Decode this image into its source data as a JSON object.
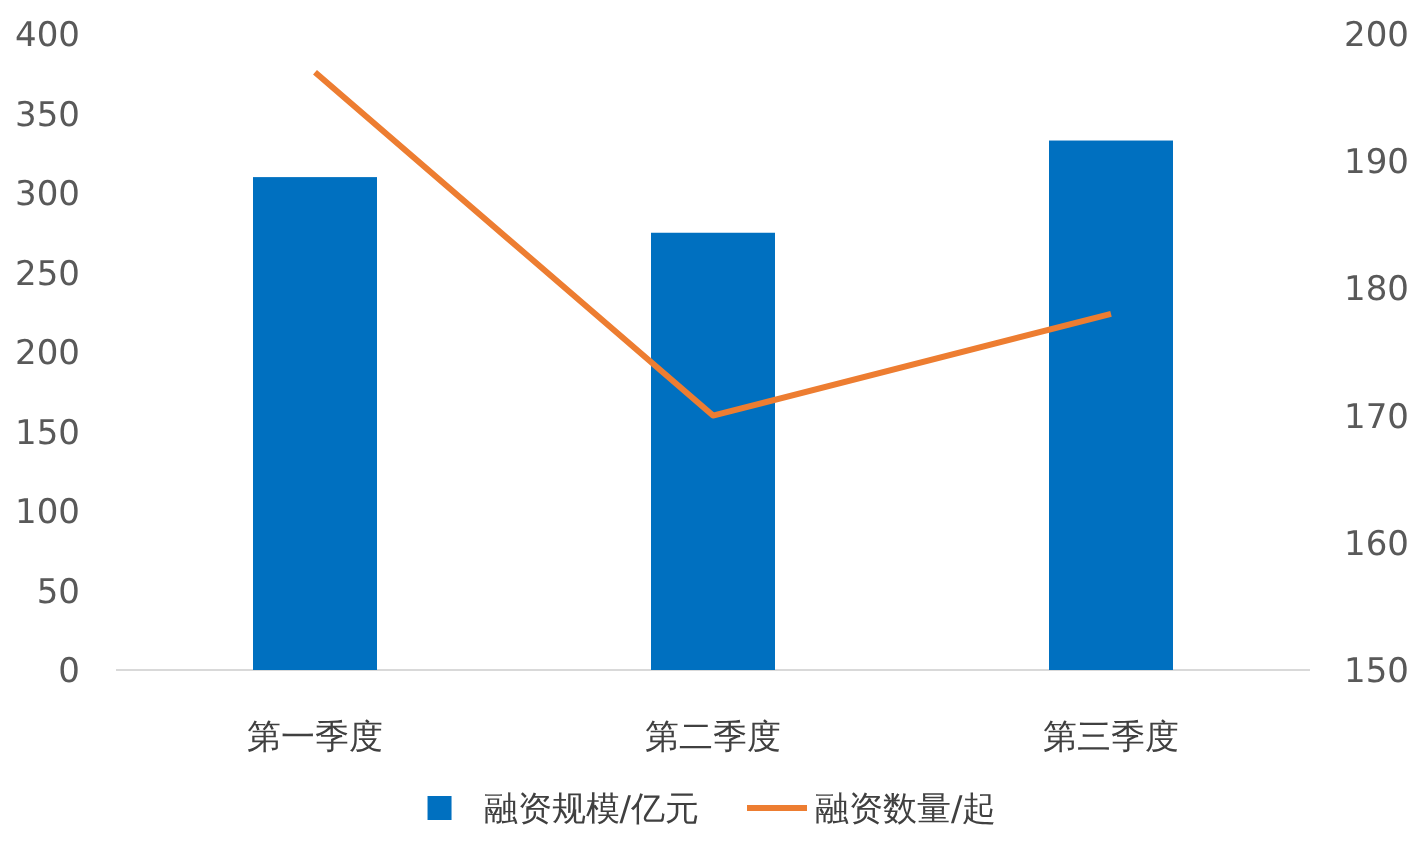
{
  "chart_data": {
    "type": "bar",
    "categories": [
      "第一季度",
      "第二季度",
      "第三季度"
    ],
    "series": [
      {
        "name": "融资规模/亿元",
        "color": "#0070c0",
        "values": [
          310,
          275,
          333
        ]
      },
      {
        "name": "融资数量/起",
        "type": "line",
        "axis": "y2",
        "color": "#ed7d31",
        "values": [
          197,
          170,
          178
        ]
      }
    ],
    "ylim": [
      0,
      400
    ],
    "yticks": [
      0,
      50,
      100,
      150,
      200,
      250,
      300,
      350,
      400
    ],
    "y2lim": [
      150,
      200
    ],
    "y2ticks": [
      150,
      160,
      170,
      180,
      190,
      200
    ],
    "legend": "bottom"
  }
}
